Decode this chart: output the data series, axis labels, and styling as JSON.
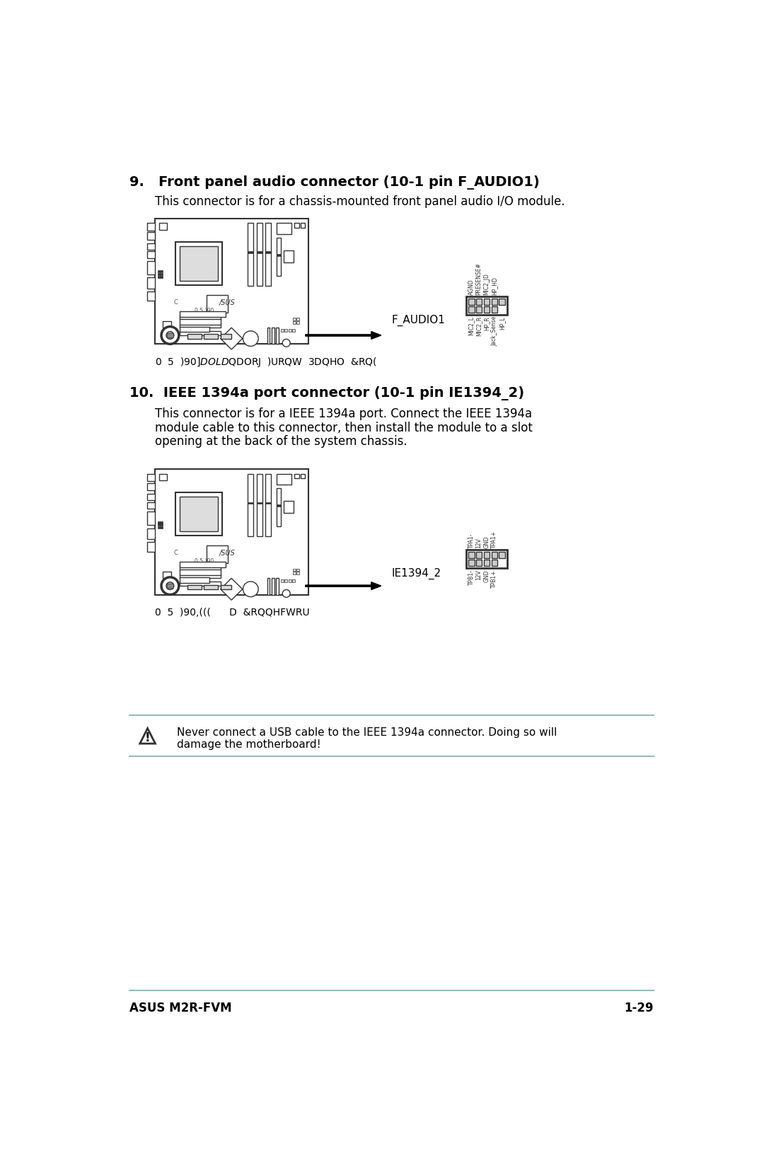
{
  "title1": "9.   Front panel audio connector (10-1 pin F_AUDIO1)",
  "desc1": "This connector is for a chassis-mounted front panel audio I/O module.",
  "diagram1_label": "F_AUDIO1",
  "caption1": "0  5  )90$]DOLD  $QDORJ  )URQW  3DQHO  &RQ(",
  "connector1_top_pins": [
    "AGND",
    "PRESENSE#",
    "MIC2_JD",
    "HP_HD"
  ],
  "connector1_bot_pins": [
    "MIC2_L",
    "MIC2_R",
    "HP_R",
    "Jack_Sense",
    "HP_L"
  ],
  "title2": "10.  IEEE 1394a port connector (10-1 pin IE1394_2)",
  "desc2_lines": [
    "This connector is for a IEEE 1394a port. Connect the IEEE 1394a",
    "module cable to this connector, then install the module to a slot",
    "opening at the back of the system chassis."
  ],
  "diagram2_label": "IE1394_2",
  "caption2": "0  5  )90,(((      D  &RQQHFWRU",
  "connector2_top_pins": [
    "TPA1-",
    "12V",
    "GND",
    "TPA1+"
  ],
  "connector2_bot_pins": [
    "TPB1-",
    "12V",
    "GND",
    "TPB1+"
  ],
  "warning_text1": "Never connect a USB cable to the IEEE 1394a connector. Doing so will",
  "warning_text2": "damage the motherboard!",
  "footer_left": "ASUS M2R-FVM",
  "footer_right": "1-29",
  "bg_color": "#ffffff",
  "text_color": "#000000",
  "gray_light": "#dddddd",
  "gray_med": "#aaaaaa",
  "gray_dark": "#555555",
  "edge_color": "#333333",
  "warn_line_color": "#99bbbb"
}
